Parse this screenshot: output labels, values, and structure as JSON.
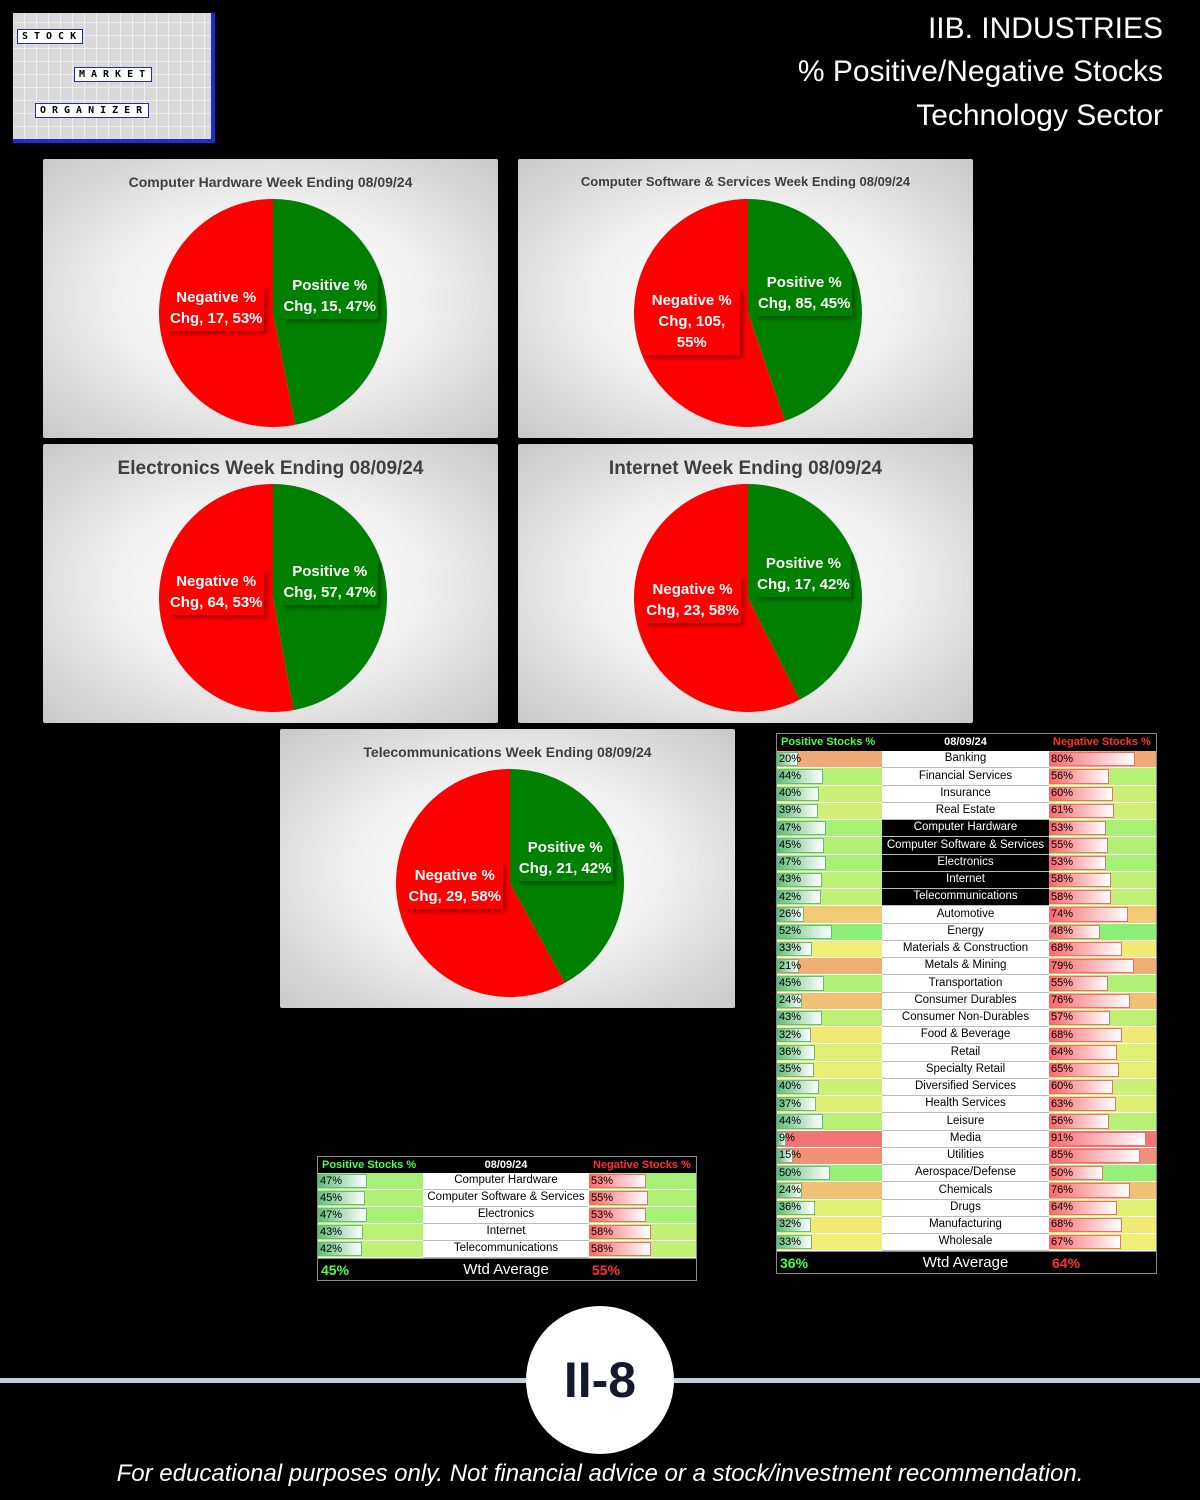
{
  "header": {
    "logo": [
      "STOCK",
      "MARKET",
      "ORGANIZER"
    ],
    "title_lines": [
      "IIB. INDUSTRIES",
      "% Positive/Negative Stocks",
      "Technology Sector"
    ]
  },
  "chart_data": [
    {
      "type": "pie",
      "title": "Computer Hardware Week Ending 08/09/24",
      "values": [
        15,
        17
      ],
      "value_labels": [
        "Positive % Chg, 15, 47%",
        "Negative % Chg, 17, 53%"
      ],
      "colors": [
        "#008000",
        "#ff0000"
      ]
    },
    {
      "type": "pie",
      "title": "Computer Software & Services Week Ending 08/09/24",
      "values": [
        85,
        105
      ],
      "value_labels": [
        "Positive % Chg, 85, 45%",
        "Negative % Chg, 105, 55%"
      ],
      "colors": [
        "#008000",
        "#ff0000"
      ]
    },
    {
      "type": "pie",
      "title": "Electronics Week Ending 08/09/24",
      "values": [
        57,
        64
      ],
      "value_labels": [
        "Positive % Chg, 57, 47%",
        "Negative % Chg, 64, 53%"
      ],
      "colors": [
        "#008000",
        "#ff0000"
      ]
    },
    {
      "type": "pie",
      "title": "Internet Week Ending 08/09/24",
      "values": [
        17,
        23
      ],
      "value_labels": [
        "Positive % Chg, 17, 42%",
        "Negative % Chg, 23, 58%"
      ],
      "colors": [
        "#008000",
        "#ff0000"
      ]
    },
    {
      "type": "pie",
      "title": "Telecommunications Week Ending 08/09/24",
      "values": [
        21,
        29
      ],
      "value_labels": [
        "Positive % Chg, 21, 42%",
        "Negative % Chg, 29, 58%"
      ],
      "colors": [
        "#008000",
        "#ff0000"
      ]
    }
  ],
  "small_table": {
    "header": [
      "Positive Stocks %",
      "08/09/24",
      "Negative Stocks %"
    ],
    "rows": [
      {
        "name": "Computer Hardware",
        "pos": 47,
        "pos_label": "47%",
        "neg": 53,
        "neg_label": "53%"
      },
      {
        "name": "Computer Software & Services",
        "pos": 45,
        "pos_label": "45%",
        "neg": 55,
        "neg_label": "55%"
      },
      {
        "name": "Electronics",
        "pos": 47,
        "pos_label": "47%",
        "neg": 53,
        "neg_label": "53%"
      },
      {
        "name": "Internet",
        "pos": 43,
        "pos_label": "43%",
        "neg": 58,
        "neg_label": "58%"
      },
      {
        "name": "Telecommunications",
        "pos": 42,
        "pos_label": "42%",
        "neg": 58,
        "neg_label": "58%"
      }
    ],
    "footer": [
      "45%",
      "Wtd Average",
      "55%"
    ]
  },
  "big_table": {
    "header": [
      "Positive Stocks %",
      "08/09/24",
      "Negative Stocks %"
    ],
    "highlight": [
      4,
      5,
      6,
      7,
      8
    ],
    "rows": [
      {
        "name": "Banking",
        "pos": 20,
        "pos_label": "20%",
        "neg": 80,
        "neg_label": "80%"
      },
      {
        "name": "Financial Services",
        "pos": 44,
        "pos_label": "44%",
        "neg": 56,
        "neg_label": "56%"
      },
      {
        "name": "Insurance",
        "pos": 40,
        "pos_label": "40%",
        "neg": 60,
        "neg_label": "60%"
      },
      {
        "name": "Real Estate",
        "pos": 39,
        "pos_label": "39%",
        "neg": 61,
        "neg_label": "61%"
      },
      {
        "name": "Computer Hardware",
        "pos": 47,
        "pos_label": "47%",
        "neg": 53,
        "neg_label": "53%"
      },
      {
        "name": "Computer Software & Services",
        "pos": 45,
        "pos_label": "45%",
        "neg": 55,
        "neg_label": "55%"
      },
      {
        "name": "Electronics",
        "pos": 47,
        "pos_label": "47%",
        "neg": 53,
        "neg_label": "53%"
      },
      {
        "name": "Internet",
        "pos": 43,
        "pos_label": "43%",
        "neg": 58,
        "neg_label": "58%"
      },
      {
        "name": "Telecommunications",
        "pos": 42,
        "pos_label": "42%",
        "neg": 58,
        "neg_label": "58%"
      },
      {
        "name": "Automotive",
        "pos": 26,
        "pos_label": "26%",
        "neg": 74,
        "neg_label": "74%"
      },
      {
        "name": "Energy",
        "pos": 52,
        "pos_label": "52%",
        "neg": 48,
        "neg_label": "48%"
      },
      {
        "name": "Materials & Construction",
        "pos": 33,
        "pos_label": "33%",
        "neg": 68,
        "neg_label": "68%"
      },
      {
        "name": "Metals & Mining",
        "pos": 21,
        "pos_label": "21%",
        "neg": 79,
        "neg_label": "79%"
      },
      {
        "name": "Transportation",
        "pos": 45,
        "pos_label": "45%",
        "neg": 55,
        "neg_label": "55%"
      },
      {
        "name": "Consumer Durables",
        "pos": 24,
        "pos_label": "24%",
        "neg": 76,
        "neg_label": "76%"
      },
      {
        "name": "Consumer Non-Durables",
        "pos": 43,
        "pos_label": "43%",
        "neg": 57,
        "neg_label": "57%"
      },
      {
        "name": "Food & Beverage",
        "pos": 32,
        "pos_label": "32%",
        "neg": 68,
        "neg_label": "68%"
      },
      {
        "name": "Retail",
        "pos": 36,
        "pos_label": "36%",
        "neg": 64,
        "neg_label": "64%"
      },
      {
        "name": "Specialty Retail",
        "pos": 35,
        "pos_label": "35%",
        "neg": 65,
        "neg_label": "65%"
      },
      {
        "name": "Diversified Services",
        "pos": 40,
        "pos_label": "40%",
        "neg": 60,
        "neg_label": "60%"
      },
      {
        "name": "Health Services",
        "pos": 37,
        "pos_label": "37%",
        "neg": 63,
        "neg_label": "63%"
      },
      {
        "name": "Leisure",
        "pos": 44,
        "pos_label": "44%",
        "neg": 56,
        "neg_label": "56%"
      },
      {
        "name": "Media",
        "pos": 9,
        "pos_label": "9%",
        "neg": 91,
        "neg_label": "91%"
      },
      {
        "name": "Utilities",
        "pos": 15,
        "pos_label": "15%",
        "neg": 85,
        "neg_label": "85%"
      },
      {
        "name": "Aerospace/Defense",
        "pos": 50,
        "pos_label": "50%",
        "neg": 50,
        "neg_label": "50%"
      },
      {
        "name": "Chemicals",
        "pos": 24,
        "pos_label": "24%",
        "neg": 76,
        "neg_label": "76%"
      },
      {
        "name": "Drugs",
        "pos": 36,
        "pos_label": "36%",
        "neg": 64,
        "neg_label": "64%"
      },
      {
        "name": "Manufacturing",
        "pos": 32,
        "pos_label": "32%",
        "neg": 68,
        "neg_label": "68%"
      },
      {
        "name": "Wholesale",
        "pos": 33,
        "pos_label": "33%",
        "neg": 67,
        "neg_label": "67%"
      }
    ],
    "footer": [
      "36%",
      "Wtd Average",
      "64%"
    ]
  },
  "page_number": "II-8",
  "disclaimer": "For educational purposes only. Not financial advice or a stock/investment recommendation."
}
